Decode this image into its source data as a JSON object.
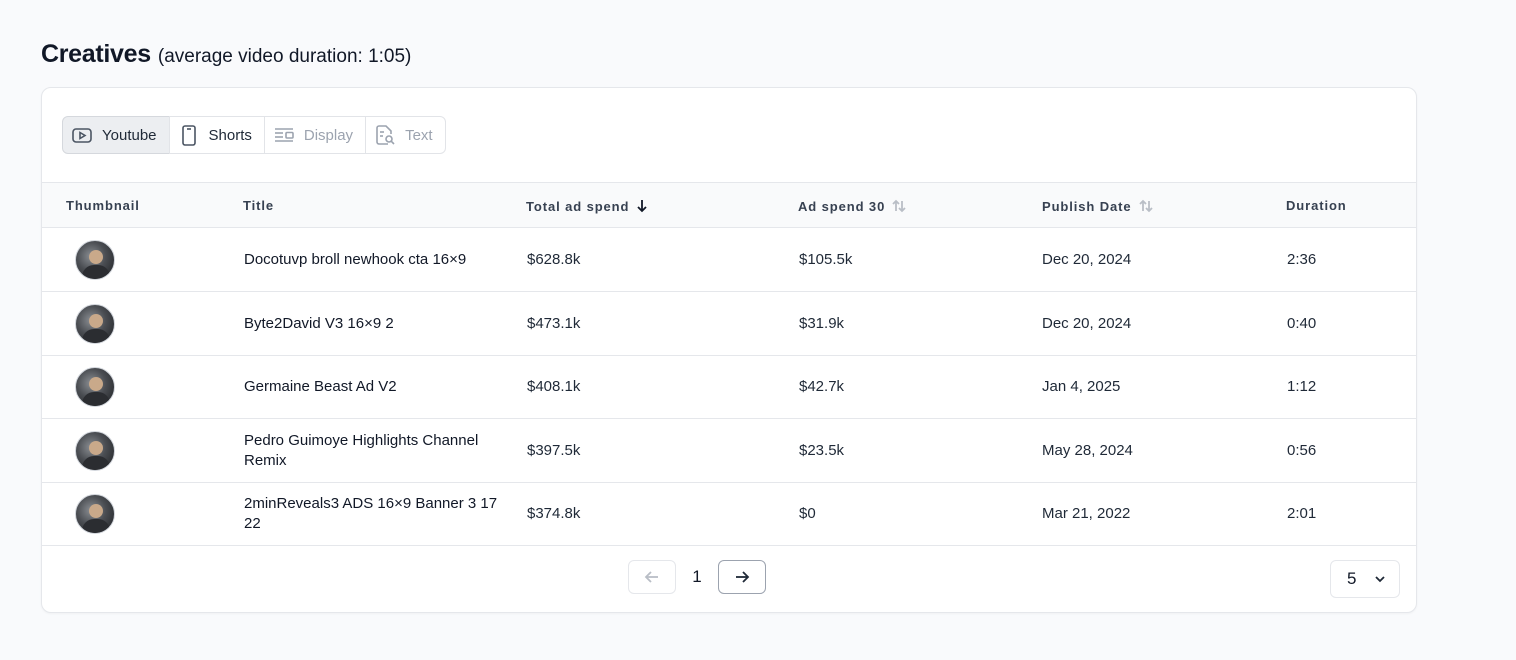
{
  "header": {
    "title": "Creatives",
    "subtitle": "(average video duration: 1:05)"
  },
  "tabs": [
    {
      "label": "Youtube",
      "icon": "youtube-icon",
      "state": "active"
    },
    {
      "label": "Shorts",
      "icon": "phone-icon",
      "state": "enabled"
    },
    {
      "label": "Display",
      "icon": "display-icon",
      "state": "disabled"
    },
    {
      "label": "Text",
      "icon": "text-search-icon",
      "state": "disabled"
    }
  ],
  "table": {
    "columns": [
      {
        "label": "Thumbnail",
        "sort": "none"
      },
      {
        "label": "Title",
        "sort": "none"
      },
      {
        "label": "Total ad spend",
        "sort": "desc"
      },
      {
        "label": "Ad spend 30",
        "sort": "sortable"
      },
      {
        "label": "Publish Date",
        "sort": "sortable"
      },
      {
        "label": "Duration",
        "sort": "none"
      }
    ],
    "rows": [
      {
        "title": "Docotuvp broll newhook cta 16×9",
        "total_spend": "$628.8k",
        "spend_30": "$105.5k",
        "publish_date": "Dec 20, 2024",
        "duration": "2:36"
      },
      {
        "title": "Byte2David V3 16×9 2",
        "total_spend": "$473.1k",
        "spend_30": "$31.9k",
        "publish_date": "Dec 20, 2024",
        "duration": "0:40"
      },
      {
        "title": "Germaine Beast Ad V2",
        "total_spend": "$408.1k",
        "spend_30": "$42.7k",
        "publish_date": "Jan 4, 2025",
        "duration": "1:12"
      },
      {
        "title": "Pedro Guimoye Highlights Channel Remix",
        "total_spend": "$397.5k",
        "spend_30": "$23.5k",
        "publish_date": "May 28, 2024",
        "duration": "0:56"
      },
      {
        "title": "2minReveals3 ADS 16×9 Banner 3 17 22",
        "total_spend": "$374.8k",
        "spend_30": "$0",
        "publish_date": "Mar 21, 2022",
        "duration": "2:01"
      }
    ]
  },
  "pagination": {
    "current_page": "1",
    "page_size": "5"
  },
  "colors": {
    "background": "#f9fafc",
    "card": "#ffffff",
    "border": "#e5e7eb",
    "active_tab": "#eceef1"
  }
}
